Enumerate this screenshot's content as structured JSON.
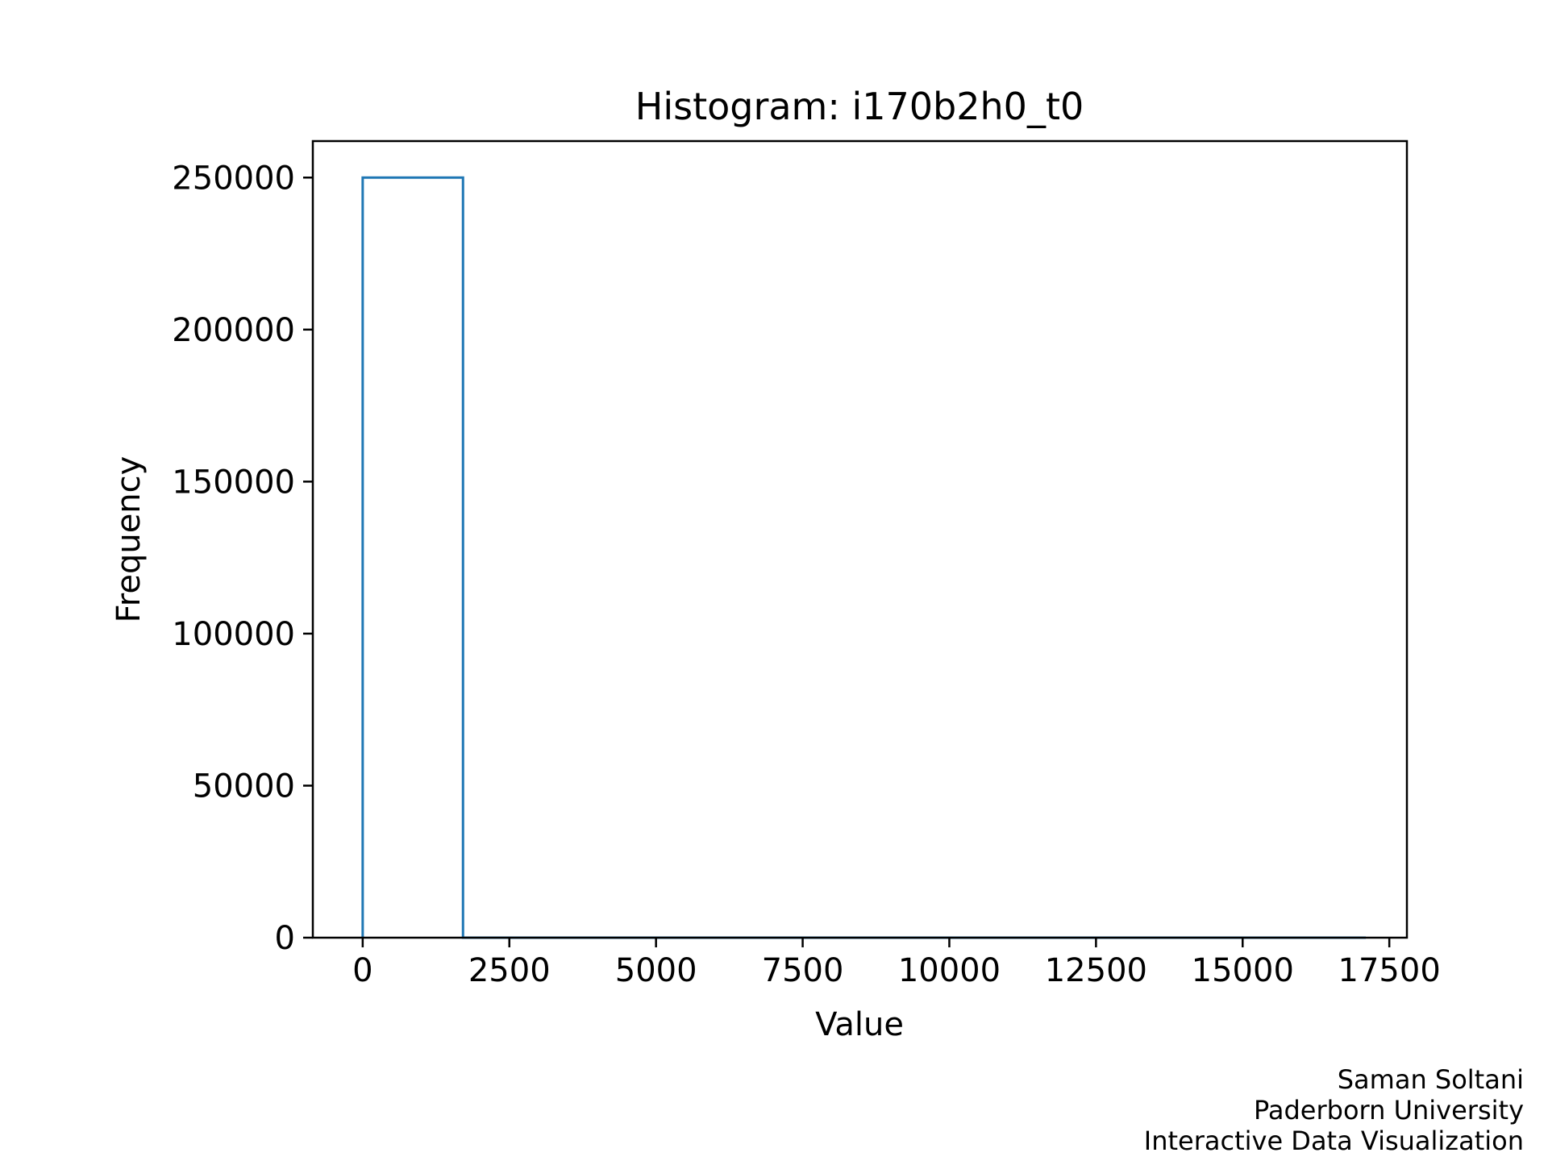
{
  "chart_data": {
    "type": "bar",
    "histtype": "step",
    "title": "Histogram: i170b2h0_t0",
    "xlabel": "Value",
    "ylabel": "Frequency",
    "xlim": [
      -850,
      17800
    ],
    "ylim": [
      0,
      262000
    ],
    "xticks": [
      0,
      2500,
      5000,
      7500,
      10000,
      12500,
      15000,
      17500
    ],
    "xtick_labels": [
      "0",
      "2500",
      "5000",
      "7500",
      "10000",
      "12500",
      "15000",
      "17500"
    ],
    "yticks": [
      0,
      50000,
      100000,
      150000,
      200000,
      250000
    ],
    "ytick_labels": [
      "0",
      "50000",
      "100000",
      "150000",
      "200000",
      "250000"
    ],
    "bin_edges": [
      0,
      1710,
      3420,
      5130,
      6840,
      8550,
      10260,
      11970,
      13680,
      15390,
      17100
    ],
    "counts": [
      250000,
      0,
      0,
      0,
      0,
      0,
      0,
      0,
      0,
      0
    ],
    "grid": false,
    "legend": "none",
    "colors": {
      "bars": "#1f77b4",
      "axes": "#000000"
    }
  },
  "credits": {
    "line1": "Saman Soltani",
    "line2": "Paderborn University",
    "line3": "Interactive Data Visualization"
  }
}
